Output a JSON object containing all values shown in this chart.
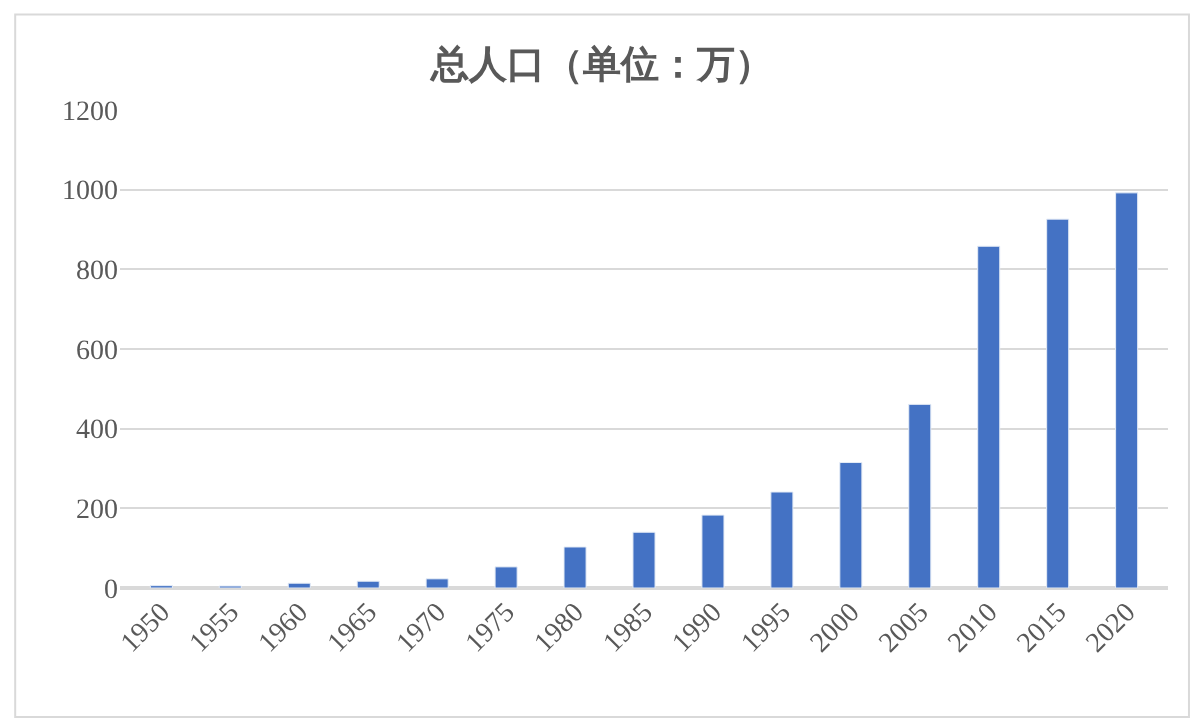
{
  "chart_data": {
    "type": "bar",
    "title": "总人口（单位：万）",
    "categories": [
      "1950",
      "1955",
      "1960",
      "1965",
      "1970",
      "1975",
      "1980",
      "1985",
      "1990",
      "1995",
      "2000",
      "2005",
      "2010",
      "2015",
      "2020"
    ],
    "values": [
      6,
      5,
      12,
      17,
      23,
      53,
      103,
      140,
      183,
      241,
      315,
      461,
      858,
      926,
      992
    ],
    "color": "#4472c4",
    "ylim": [
      0,
      1200
    ],
    "yticks": [
      0,
      200,
      400,
      600,
      800,
      1000,
      1200
    ],
    "grid": "y",
    "legend": false
  }
}
